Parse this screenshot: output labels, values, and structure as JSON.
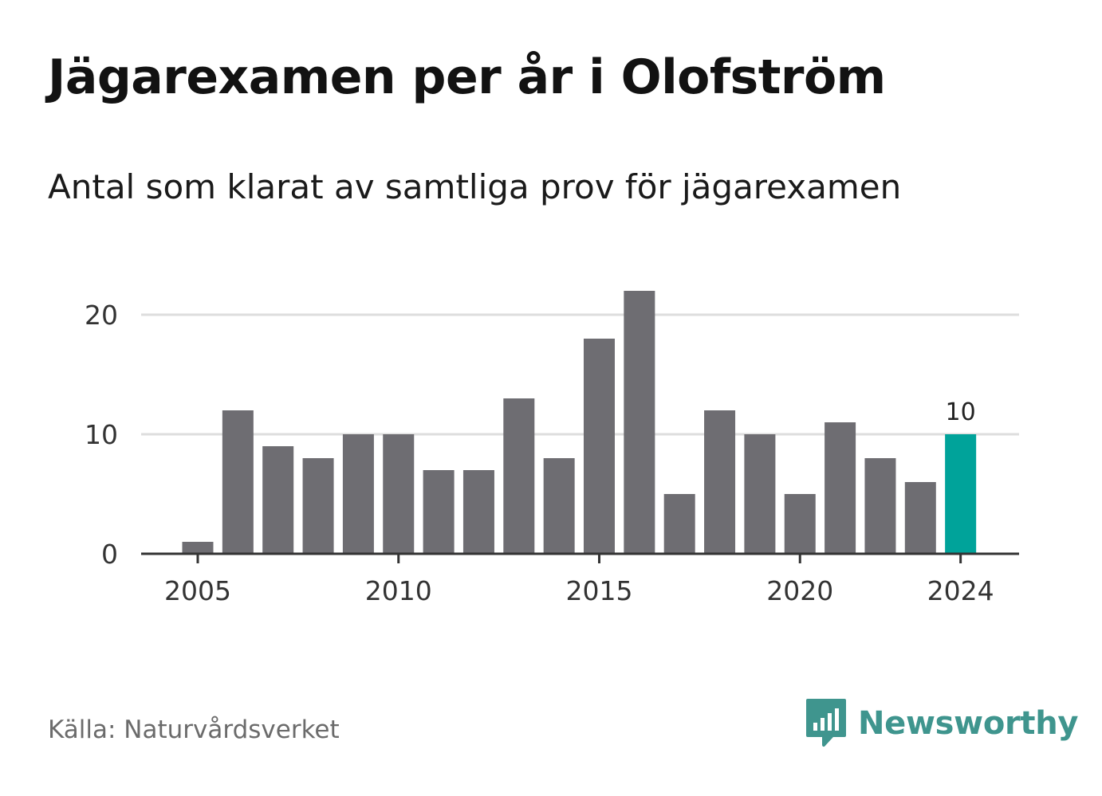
{
  "header": {
    "title": "Jägarexamen per år i Olofström",
    "subtitle": "Antal som klarat av samtliga prov för jägarexamen"
  },
  "footer": {
    "source": "Källa: Naturvårdsverket",
    "brand_name": "Newsworthy",
    "brand_icon": "newsworthy-chart-bubble-icon"
  },
  "colors": {
    "bar": "#6e6d72",
    "highlight": "#00a39a",
    "grid": "#dddddd",
    "axis": "#333333",
    "brand": "#3f958e"
  },
  "chart_data": {
    "type": "bar",
    "categories": [
      2005,
      2006,
      2007,
      2008,
      2009,
      2010,
      2011,
      2012,
      2013,
      2014,
      2015,
      2016,
      2017,
      2018,
      2019,
      2020,
      2021,
      2022,
      2023,
      2024
    ],
    "values": [
      1,
      12,
      9,
      8,
      10,
      10,
      7,
      7,
      13,
      8,
      18,
      22,
      5,
      12,
      10,
      5,
      11,
      8,
      6,
      10
    ],
    "highlight_category": 2024,
    "highlight_label": "10",
    "x_ticks": [
      "2005",
      "2010",
      "2015",
      "2020",
      "2024"
    ],
    "y_ticks": [
      "0",
      "10",
      "20"
    ],
    "ylim": [
      0,
      22
    ],
    "grid": true,
    "xlabel": "",
    "ylabel": ""
  }
}
